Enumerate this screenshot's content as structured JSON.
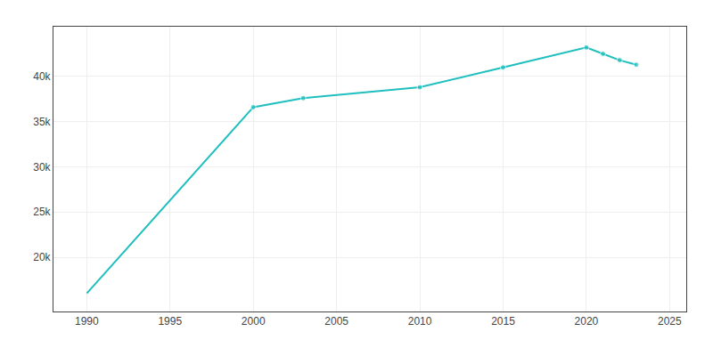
{
  "chart_data": {
    "type": "line",
    "x": [
      1990,
      2000,
      2003,
      2010,
      2015,
      2020,
      2021,
      2022,
      2023
    ],
    "values": [
      16000,
      36600,
      37600,
      38800,
      41000,
      43200,
      42500,
      41800,
      41300
    ],
    "color": "#20BFBF",
    "marker": "circle",
    "xlim": [
      1988,
      2026
    ],
    "ylim": [
      14000,
      45500
    ],
    "xticks": [
      1990,
      1995,
      2000,
      2005,
      2010,
      2015,
      2020,
      2025
    ],
    "yticks": [
      {
        "value": 20000,
        "label": "20k"
      },
      {
        "value": 25000,
        "label": "25k"
      },
      {
        "value": 30000,
        "label": "30k"
      },
      {
        "value": 35000,
        "label": "35k"
      },
      {
        "value": 40000,
        "label": "40k"
      }
    ],
    "grid": true
  }
}
